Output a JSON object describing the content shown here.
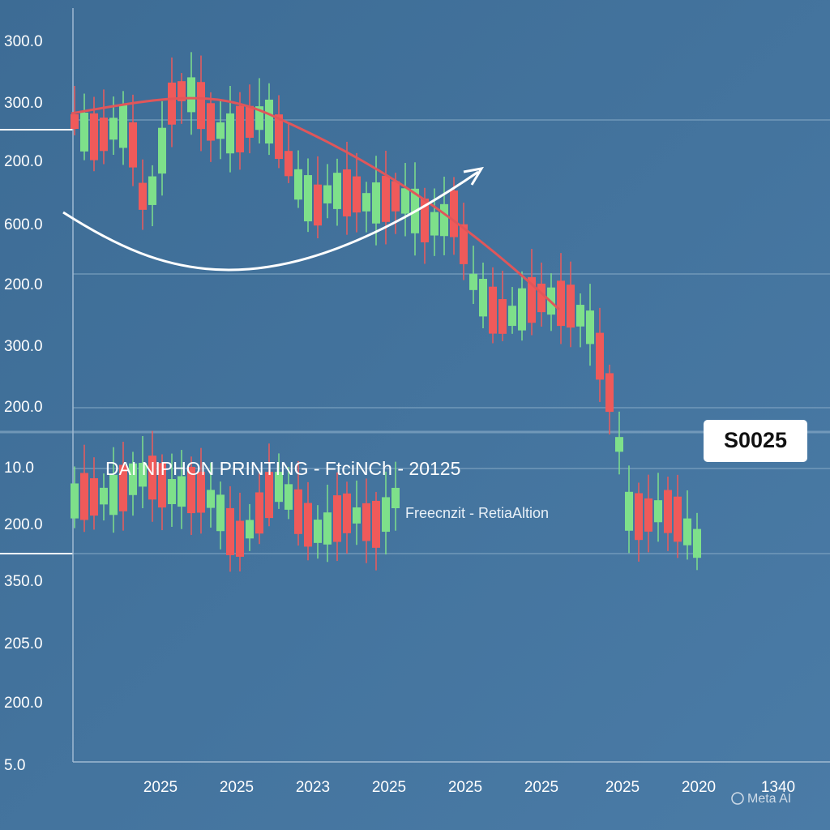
{
  "y_axis_labels": [
    "300.0",
    "300.0",
    "200.0",
    "600.0",
    "200.0",
    "300.0",
    "200.0",
    "10.0",
    "200.0",
    "350.0",
    "205.0",
    "200.0",
    "5.0"
  ],
  "x_axis_labels": [
    "2025",
    "2025",
    "2023",
    "2025",
    "2025",
    "2025",
    "2025",
    "2020",
    "1340"
  ],
  "title": "DAI NIPHON PRINTING - FtciNCh - 20125",
  "subtitle": "Freecnzit - RetiaAltion",
  "badge": "S0025",
  "watermark": "Meta AI"
}
